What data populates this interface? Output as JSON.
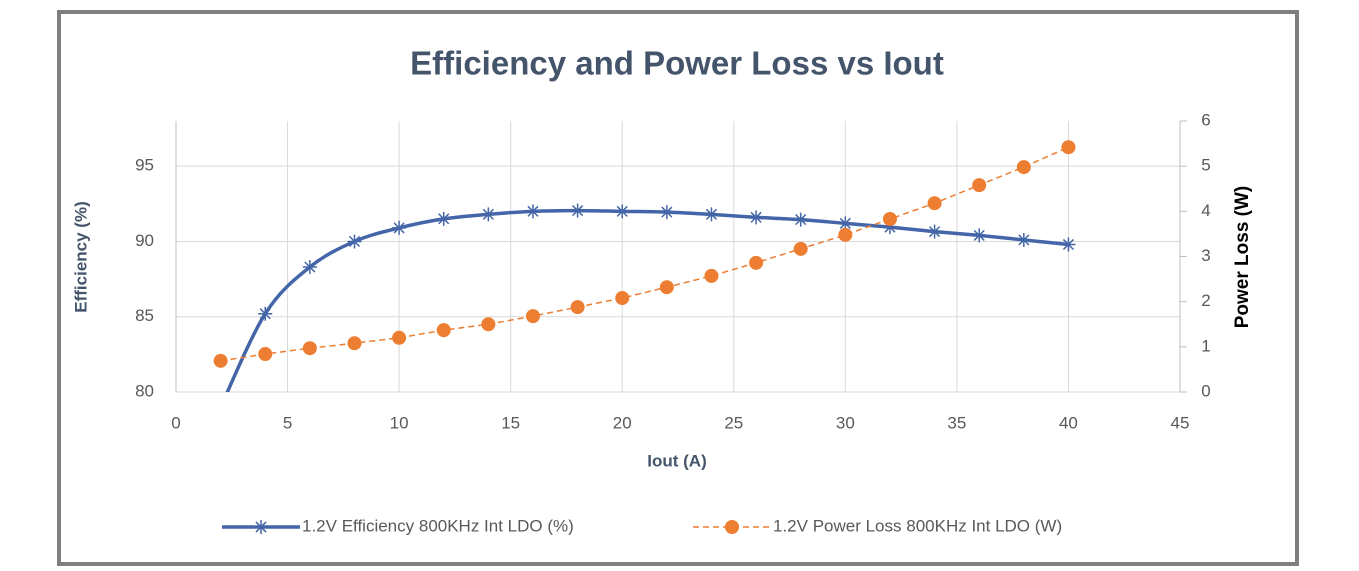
{
  "chart_data": {
    "type": "line",
    "title": "Efficiency and Power Loss vs Iout",
    "x_label": "Iout (A)",
    "y_label": "Efficiency (%)",
    "y2_label": "Power Loss (W)",
    "x": [
      2,
      4,
      6,
      8,
      10,
      12,
      14,
      16,
      18,
      20,
      22,
      24,
      26,
      28,
      30,
      32,
      34,
      36,
      38,
      40
    ],
    "series": [
      {
        "name": "1.2V Efficiency 800KHz Int LDO (%)",
        "color": "#4466a8",
        "axis": "y",
        "smooth": true,
        "dashed": false,
        "marker": "star",
        "values": [
          79,
          85.2,
          88.3,
          90.0,
          90.9,
          91.5,
          91.8,
          92.0,
          92.05,
          92.0,
          91.95,
          91.8,
          91.6,
          91.45,
          91.2,
          90.95,
          90.65,
          90.4,
          90.1,
          89.8
        ]
      },
      {
        "name": "1.2V Power Loss 800KHz Int LDO (W)",
        "color": "#ed7d31",
        "axis": "y2",
        "smooth": false,
        "dashed": true,
        "marker": "circle",
        "values": [
          0.69,
          0.84,
          0.97,
          1.08,
          1.2,
          1.37,
          1.5,
          1.68,
          1.88,
          2.08,
          2.32,
          2.57,
          2.86,
          3.17,
          3.48,
          3.83,
          4.18,
          4.58,
          4.98,
          5.42
        ]
      }
    ],
    "xlim": [
      0,
      45
    ],
    "xticks": [
      0,
      5,
      10,
      15,
      20,
      25,
      30,
      35,
      40,
      45
    ],
    "ylim": [
      80,
      98
    ],
    "yticks": [
      80,
      85,
      90,
      95
    ],
    "y2lim": [
      0,
      6
    ],
    "y2ticks": [
      0,
      1,
      2,
      3,
      4,
      5,
      6
    ],
    "grid": true,
    "legend": "bottom"
  }
}
